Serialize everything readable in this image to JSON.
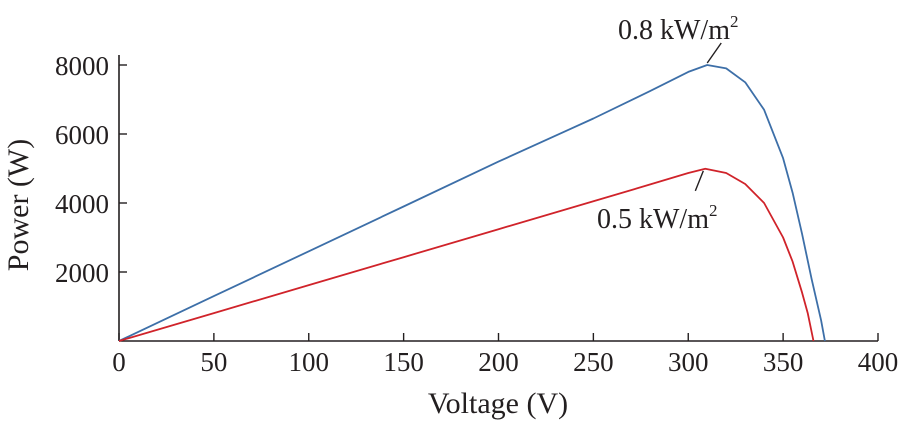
{
  "chart_data": {
    "type": "line",
    "title": "",
    "xlabel": "Voltage (V)",
    "ylabel": "Power (W)",
    "xlim": [
      0,
      400
    ],
    "ylim": [
      0,
      8000
    ],
    "grid": false,
    "legend": "none",
    "x_ticks": [
      0,
      50,
      100,
      150,
      200,
      250,
      300,
      350,
      400
    ],
    "y_ticks": [
      2000,
      4000,
      6000,
      8000
    ],
    "series": [
      {
        "color": "#3d6fa8",
        "x": [
          0,
          50,
          100,
          150,
          200,
          250,
          280,
          300,
          310,
          320,
          330,
          340,
          350,
          355,
          360,
          365,
          370,
          372
        ],
        "y": [
          0,
          1300,
          2600,
          3900,
          5200,
          6450,
          7250,
          7800,
          8000,
          7900,
          7500,
          6700,
          5300,
          4300,
          3100,
          1800,
          600,
          0
        ]
      },
      {
        "color": "#d0232a",
        "x": [
          0,
          50,
          100,
          150,
          200,
          250,
          280,
          300,
          309,
          320,
          330,
          340,
          350,
          355,
          360,
          363,
          366
        ],
        "y": [
          0,
          810,
          1620,
          2430,
          3240,
          4050,
          4540,
          4870,
          4990,
          4870,
          4550,
          4000,
          3000,
          2300,
          1400,
          800,
          0
        ]
      }
    ],
    "annotations": [
      {
        "text": "0.8 kW/m",
        "sup": "2",
        "series": 0,
        "x": 310,
        "y": 8000,
        "position": "above-right"
      },
      {
        "text": "0.5 kW/m",
        "sup": "2",
        "series": 1,
        "x": 309,
        "y": 4990,
        "position": "below-right"
      }
    ]
  }
}
